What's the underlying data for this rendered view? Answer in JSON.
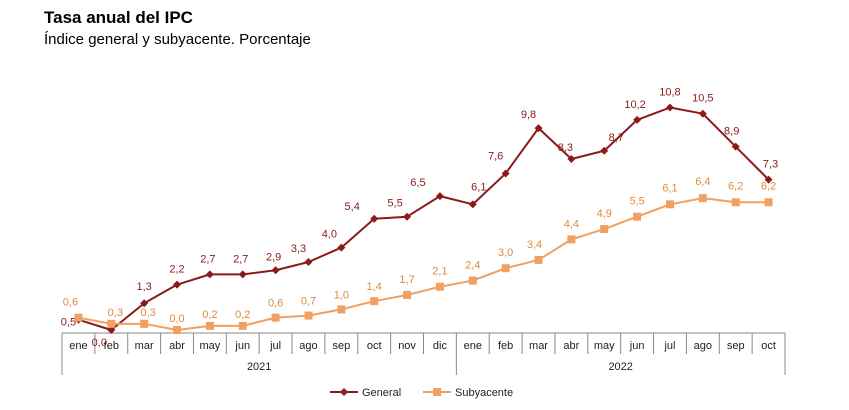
{
  "chart_data": {
    "type": "line",
    "title": "Tasa anual del IPC",
    "subtitle": "Índice general y subyacente. Porcentaje",
    "categories": [
      "ene",
      "feb",
      "mar",
      "abr",
      "may",
      "jun",
      "jul",
      "ago",
      "sep",
      "oct",
      "nov",
      "dic",
      "ene",
      "feb",
      "mar",
      "abr",
      "may",
      "jun",
      "jul",
      "ago",
      "sep",
      "oct"
    ],
    "years": [
      {
        "label": "2021",
        "from": 0,
        "to": 11
      },
      {
        "label": "2022",
        "from": 12,
        "to": 21
      }
    ],
    "series": [
      {
        "name": "General",
        "color": "#8b1a1a",
        "marker": "diamond",
        "values": [
          0.5,
          0.0,
          1.3,
          2.2,
          2.7,
          2.7,
          2.9,
          3.3,
          4.0,
          5.4,
          5.5,
          6.5,
          6.1,
          7.6,
          9.8,
          8.3,
          8.7,
          10.2,
          10.8,
          10.5,
          8.9,
          7.3
        ],
        "labels": [
          "0,5",
          "0,0",
          "1,3",
          "2,2",
          "2,7",
          "2,7",
          "2,9",
          "3,3",
          "4,0",
          "5,4",
          "5,5",
          "6,5",
          "6,1",
          "7,6",
          "9,8",
          "8,3",
          "8,7",
          "10,2",
          "10,8",
          "10,5",
          "8,9",
          "7,3"
        ]
      },
      {
        "name": "Subyacente",
        "color": "#f0a060",
        "marker": "square",
        "values": [
          0.6,
          0.3,
          0.3,
          0.0,
          0.2,
          0.2,
          0.6,
          0.7,
          1.0,
          1.4,
          1.7,
          2.1,
          2.4,
          3.0,
          3.4,
          4.4,
          4.9,
          5.5,
          6.1,
          6.4,
          6.2,
          6.2
        ],
        "labels": [
          "0,6",
          "0,3",
          "0,3",
          "0,0",
          "0,2",
          "0,2",
          "0,6",
          "0,7",
          "1,0",
          "1,4",
          "1,7",
          "2,1",
          "2,4",
          "3,0",
          "3,4",
          "4,4",
          "4,9",
          "5,5",
          "6,1",
          "6,4",
          "6,2",
          "6,2"
        ]
      }
    ],
    "ylim": [
      0,
      11
    ],
    "grid": false,
    "legend": "bottom-center"
  }
}
